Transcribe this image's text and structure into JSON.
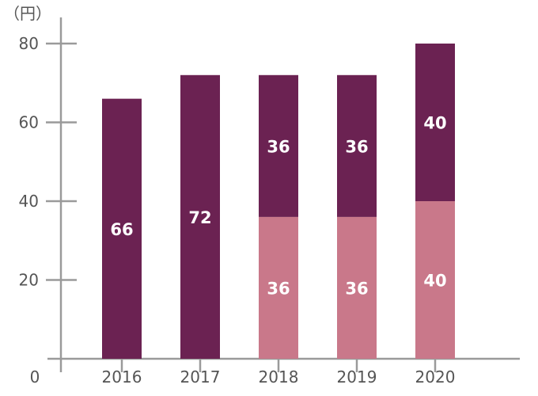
{
  "chart_data": {
    "type": "bar",
    "stacked": true,
    "unit_label": "（円）",
    "categories": [
      "2016",
      "2017",
      "2018",
      "2019",
      "2020"
    ],
    "series": [
      {
        "values": [
          0,
          0,
          36,
          36,
          40
        ],
        "color": "#c9788a"
      },
      {
        "values": [
          66,
          72,
          36,
          36,
          40
        ],
        "color": "#6b2252"
      }
    ],
    "data_labels": [
      [
        null,
        null,
        "36",
        "36",
        "40"
      ],
      [
        "66",
        "72",
        "36",
        "36",
        "40"
      ]
    ],
    "yticks": [
      0,
      20,
      40,
      60,
      80
    ],
    "ylim": [
      0,
      80
    ],
    "grid": false,
    "title": "",
    "xlabel": "",
    "ylabel": "",
    "axis_color": "#9a9a9a"
  }
}
